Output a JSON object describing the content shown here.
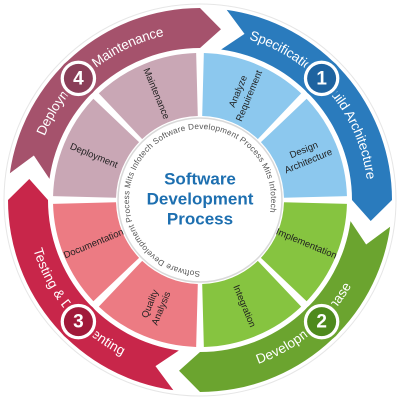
{
  "center": {
    "title_lines": [
      "Software",
      "Development",
      "Process"
    ],
    "ring_text": "Software Development Process Mits Infotech Software Development Process Mits Infotech"
  },
  "phases": [
    {
      "number": "1",
      "title": "Specification & Build Architecture",
      "color": "#2a7bbd",
      "dark_color": "#1e63a0",
      "inner_color": "#8cc8ee",
      "items": [
        {
          "lines": [
            "Analyze",
            "Requirement"
          ]
        },
        {
          "lines": [
            "Design",
            "Architecture"
          ]
        }
      ]
    },
    {
      "number": "2",
      "title": "Development Phase",
      "color": "#6ba42f",
      "dark_color": "#4e8a1d",
      "inner_color": "#86c440",
      "items": [
        {
          "lines": [
            "Implementation"
          ]
        },
        {
          "lines": [
            "Integration"
          ]
        }
      ]
    },
    {
      "number": "3",
      "title": "Testing & Documenting",
      "color": "#c8264a",
      "dark_color": "#a11a3a",
      "inner_color": "#ec7b83",
      "items": [
        {
          "lines": [
            "Quality",
            "Analysis"
          ]
        },
        {
          "lines": [
            "Documentation"
          ]
        }
      ]
    },
    {
      "number": "4",
      "title": "Deployment & Maintenance",
      "color": "#a5526c",
      "dark_color": "#8a3e58",
      "inner_color": "#c9a7b5",
      "items": [
        {
          "lines": [
            "Deployment"
          ]
        },
        {
          "lines": [
            "Maintenance"
          ]
        }
      ]
    }
  ]
}
